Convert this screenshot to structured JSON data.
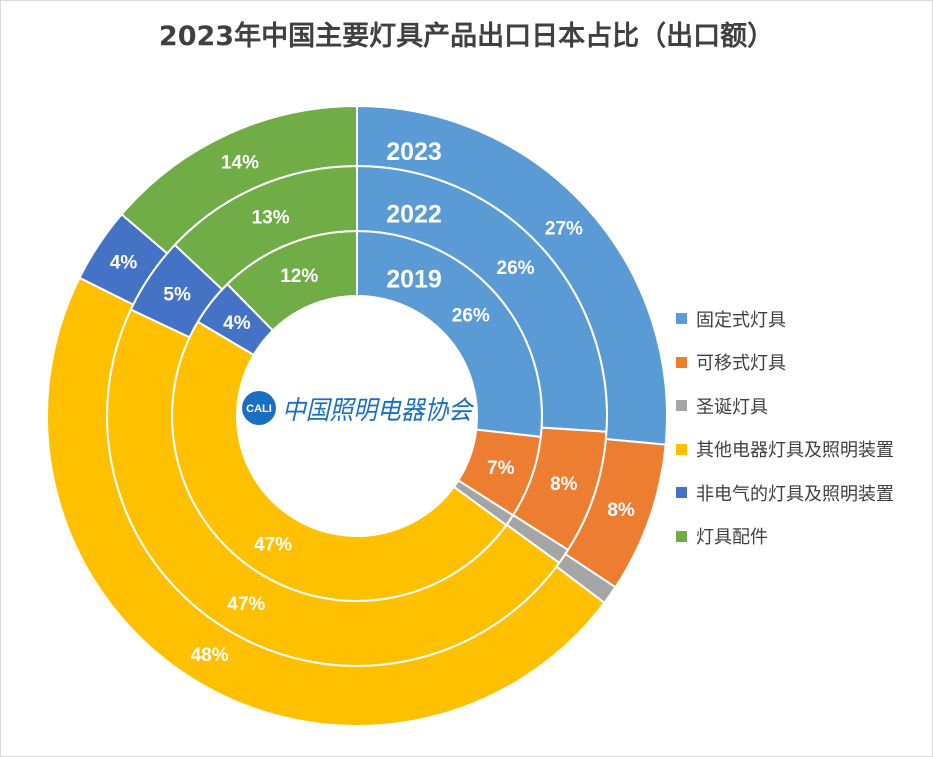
{
  "chart_data": {
    "type": "pie",
    "title": "2023年中国主要灯具产品出口日本占比（出口额）",
    "categories": [
      "固定式灯具",
      "可移式灯具",
      "圣诞灯具",
      "其他电器灯具及照明装置",
      "非电气的灯具及照明装置",
      "灯具配件"
    ],
    "colors": [
      "#5B9BD5",
      "#ED7D31",
      "#A5A5A5",
      "#FFC000",
      "#4472C4",
      "#70AD47"
    ],
    "series": [
      {
        "name": "2019",
        "values": [
          26,
          7,
          1,
          47,
          4,
          12
        ],
        "labels": [
          "26%",
          "7%",
          null,
          "47%",
          "4%",
          "12%"
        ]
      },
      {
        "name": "2022",
        "values": [
          26,
          8,
          1,
          47,
          5,
          13
        ],
        "labels": [
          "26%",
          "8%",
          null,
          "47%",
          "5%",
          "13%"
        ]
      },
      {
        "name": "2023",
        "values": [
          27,
          8,
          1,
          48,
          4,
          14
        ],
        "labels": [
          "27%",
          "8%",
          null,
          "48%",
          "4%",
          "14%"
        ]
      }
    ],
    "unit": "%",
    "legend": "right"
  },
  "logo": {
    "mark": "CALI",
    "text": "中国照明电器协会"
  }
}
